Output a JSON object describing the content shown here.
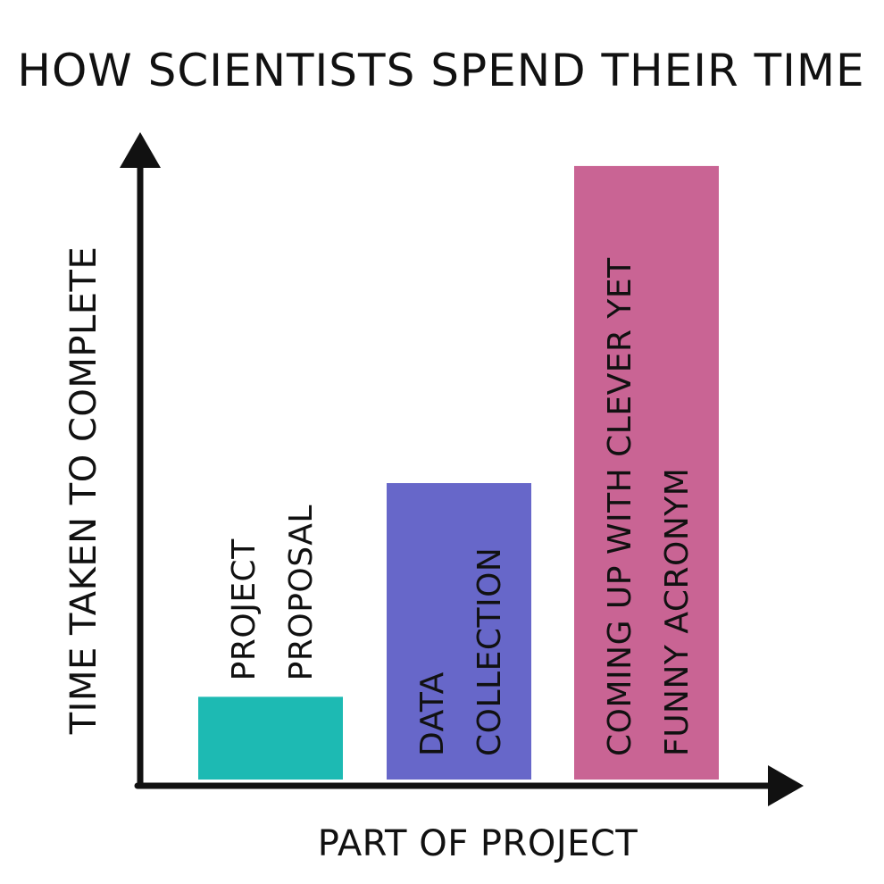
{
  "chart_data": {
    "type": "bar",
    "title": "HOW SCIENTISTS SPEND THEIR TIME",
    "xlabel": "PART OF PROJECT",
    "ylabel": "TIME TAKEN TO COMPLETE",
    "categories": [
      [
        "PROJECT",
        "PROPOSAL"
      ],
      [
        "DATA",
        "COLLECTION"
      ],
      [
        "COMING UP WITH CLEVER YET",
        "FUNNY ACRONYM"
      ]
    ],
    "values": [
      12,
      43,
      89
    ],
    "ylim": [
      0,
      100
    ],
    "colors": [
      "#1dbab3",
      "#6767c9",
      "#c96494"
    ],
    "label_colors": [
      "#111111",
      "#ffffff",
      "#ffffff"
    ],
    "label_placement": [
      "above",
      "inside",
      "inside"
    ],
    "grid": false,
    "legend": "none"
  }
}
